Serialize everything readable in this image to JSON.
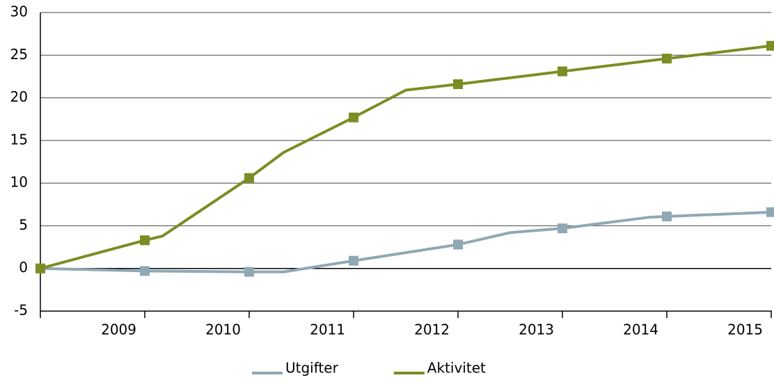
{
  "chart_data": {
    "type": "line",
    "xlim": [
      2008,
      2015
    ],
    "xticks": [
      2009,
      2010,
      2011,
      2012,
      2013,
      2014,
      2015
    ],
    "ylim": [
      -5,
      30
    ],
    "yticks": [
      -5,
      0,
      5,
      10,
      15,
      20,
      25,
      30
    ],
    "grid": true,
    "legend": "bottom",
    "series": [
      {
        "name": "Utgifter",
        "color": "#8fa8b4",
        "x": [
          2008,
          2009,
          2010,
          2010.33,
          2011,
          2012,
          2012.5,
          2013,
          2013.83,
          2014,
          2015
        ],
        "values": [
          0,
          -0.3,
          -0.4,
          -0.4,
          0.9,
          2.8,
          4.2,
          4.7,
          6.0,
          6.1,
          6.6
        ]
      },
      {
        "name": "Aktivitet",
        "color": "#7d8c23",
        "x": [
          2008,
          2009,
          2009.17,
          2010,
          2010.33,
          2011,
          2011.5,
          2012,
          2013,
          2014,
          2015
        ],
        "values": [
          0,
          3.3,
          3.8,
          10.6,
          13.6,
          17.7,
          20.9,
          21.6,
          23.1,
          24.6,
          26.1
        ]
      }
    ]
  }
}
